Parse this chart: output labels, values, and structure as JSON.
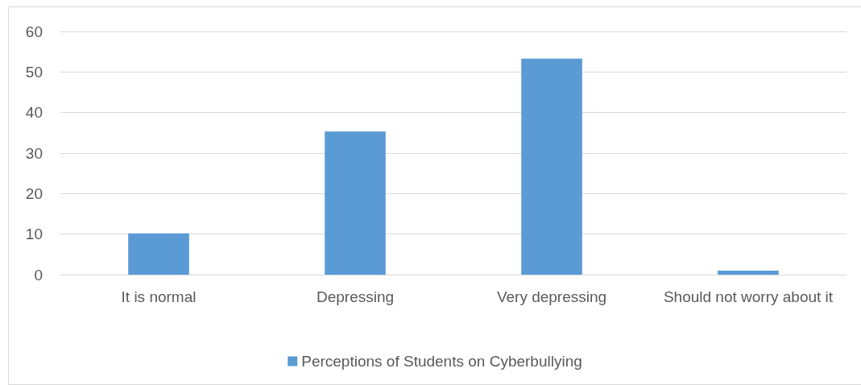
{
  "chart_data": {
    "type": "bar",
    "categories": [
      "It is normal",
      "Depressing",
      "Very depressing",
      "Should not worry about it"
    ],
    "series": [
      {
        "name": "Perceptions of Students on Cyberbullying",
        "color": "#5b9bd5",
        "values": [
          10.2,
          35.3,
          53.3,
          1.0
        ]
      }
    ],
    "ylim": [
      0,
      60
    ],
    "yticks": [
      0,
      10,
      20,
      30,
      40,
      50,
      60
    ],
    "grid": "y",
    "legend": "bottom"
  }
}
